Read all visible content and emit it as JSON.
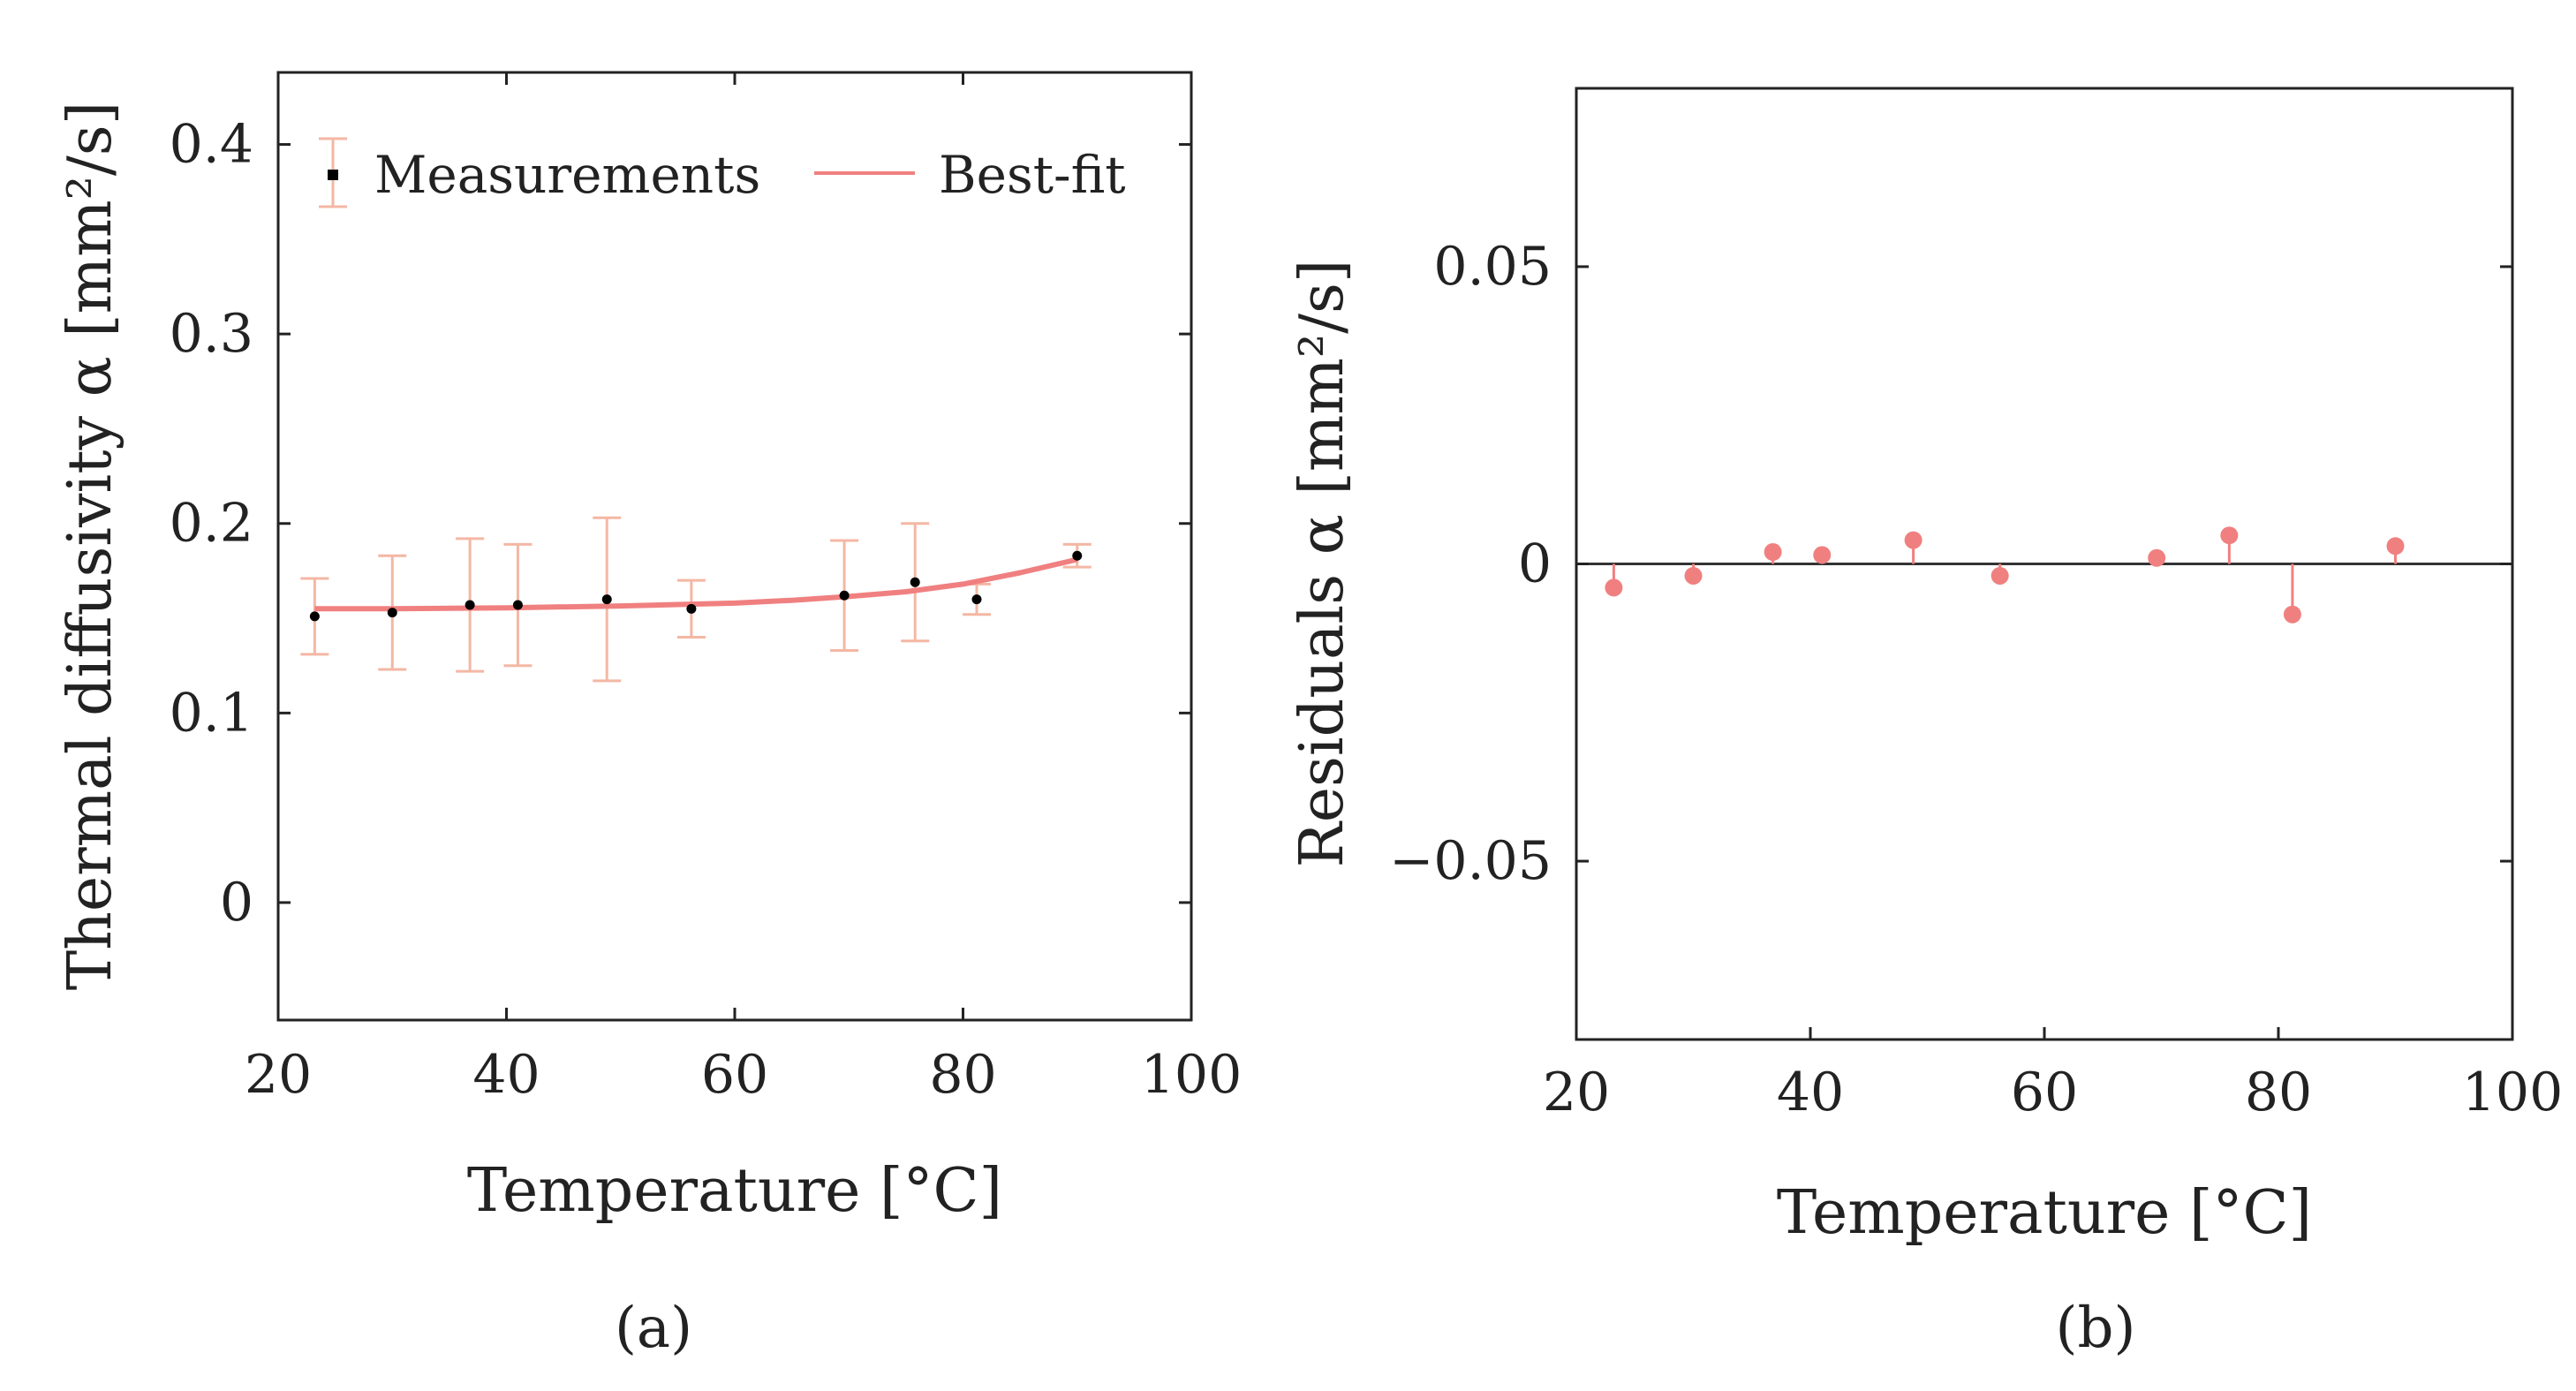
{
  "colors": {
    "errorbar": "#f4b7a4",
    "fit": "#f08080",
    "residual": "#f08080",
    "marker": "#000000",
    "axis": "#222222"
  },
  "chart_data": [
    {
      "type": "scatter",
      "panel_label": "(a)",
      "title": "",
      "xlabel": "Temperature [°C]",
      "ylabel": "Thermal diffusivity  α [mm²/s]",
      "xlim": [
        20,
        100
      ],
      "ylim": [
        -0.062,
        0.438
      ],
      "xticks": [
        20,
        40,
        60,
        80,
        100
      ],
      "yticks": [
        0,
        0.1,
        0.2,
        0.3,
        0.4
      ],
      "xtick_labels": [
        "20",
        "40",
        "60",
        "80",
        "100"
      ],
      "ytick_labels": [
        "0",
        "0.1",
        "0.2",
        "0.3",
        "0.4"
      ],
      "legend_position": "top",
      "series": [
        {
          "name": "Measurements",
          "kind": "errorbar",
          "x": [
            23.2,
            30.0,
            36.8,
            41.0,
            48.8,
            56.2,
            69.6,
            75.8,
            81.2,
            90.0
          ],
          "y": [
            0.151,
            0.153,
            0.157,
            0.157,
            0.16,
            0.155,
            0.162,
            0.169,
            0.16,
            0.183
          ],
          "err": [
            0.02,
            0.03,
            0.035,
            0.032,
            0.043,
            0.015,
            0.029,
            0.031,
            0.008,
            0.006
          ]
        },
        {
          "name": "Best-fit",
          "kind": "line",
          "x": [
            23.2,
            30,
            40,
            50,
            60,
            65,
            70,
            75,
            80,
            85,
            90
          ],
          "y": [
            0.155,
            0.155,
            0.1555,
            0.1565,
            0.158,
            0.1595,
            0.1615,
            0.164,
            0.168,
            0.174,
            0.181
          ]
        }
      ]
    },
    {
      "type": "scatter",
      "panel_label": "(b)",
      "title": "",
      "xlabel": "Temperature [°C]",
      "ylabel": "Residuals  α [mm²/s]",
      "xlim": [
        20,
        100
      ],
      "ylim": [
        -0.08,
        0.08
      ],
      "xticks": [
        20,
        40,
        60,
        80,
        100
      ],
      "yticks": [
        -0.05,
        0,
        0.05
      ],
      "xtick_labels": [
        "20",
        "40",
        "60",
        "80",
        "100"
      ],
      "ytick_labels": [
        "−0.05",
        "0",
        "0.05"
      ],
      "series": [
        {
          "name": "Residuals",
          "kind": "stem",
          "x": [
            23.2,
            30.0,
            36.8,
            41.0,
            48.8,
            56.2,
            69.6,
            75.8,
            81.2,
            90.0
          ],
          "y": [
            -0.004,
            -0.002,
            0.002,
            0.0015,
            0.004,
            -0.002,
            0.001,
            0.0048,
            -0.0085,
            0.003
          ]
        }
      ]
    }
  ]
}
